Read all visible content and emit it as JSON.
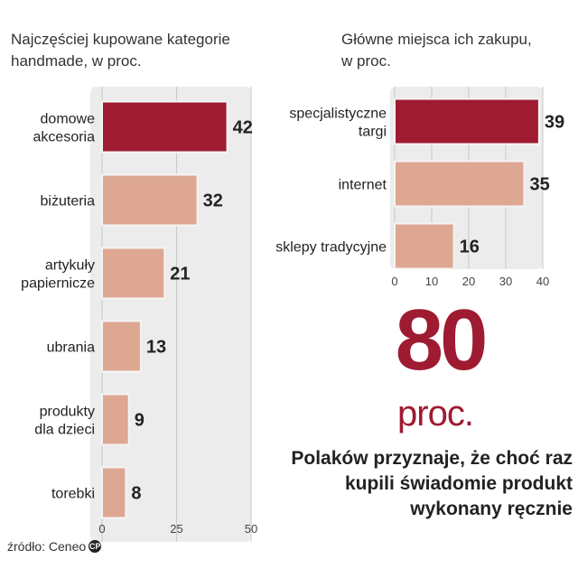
{
  "chart_data": [
    {
      "type": "bar",
      "orientation": "horizontal",
      "title": "Najczęściej kupowane kategorie\nhandmade, w proc.",
      "categories": [
        "domowe\nakcesoria",
        "biżuteria",
        "artykuły\npapiernicze",
        "ubrania",
        "produkty\ndla dzieci",
        "torebki"
      ],
      "values": [
        42,
        32,
        21,
        13,
        9,
        8
      ],
      "highlight": [
        true,
        false,
        false,
        false,
        false,
        false
      ],
      "xlim": [
        0,
        50
      ],
      "xticks": [
        0,
        25,
        50
      ],
      "grid": true
    },
    {
      "type": "bar",
      "orientation": "horizontal",
      "title": "Główne miejsca ich zakupu,\nw proc.",
      "categories": [
        "specjalistyczne\ntargi",
        "internet",
        "sklepy tradycyjne"
      ],
      "values": [
        39,
        35,
        16
      ],
      "highlight": [
        true,
        false,
        false
      ],
      "xlim": [
        0,
        40
      ],
      "xticks": [
        0,
        10,
        20,
        30,
        40
      ],
      "grid": true
    }
  ],
  "highlight_stat": {
    "number": "80",
    "unit": "proc.",
    "text": "Polaków przyznaje, że choć raz\nkupili świadomie produkt\nwykonany ręcznie"
  },
  "source": {
    "label": "źródło: Ceneo",
    "icon": "cp-copyright-icon",
    "icon_text": "CP"
  },
  "colors": {
    "highlight_bar": "#9e1b32",
    "bar": "#dea792",
    "bar_stroke": "#ffffff",
    "panel_bg": "#ececec",
    "grid": "#c8c8c8",
    "accent_text": "#9e1b32"
  }
}
